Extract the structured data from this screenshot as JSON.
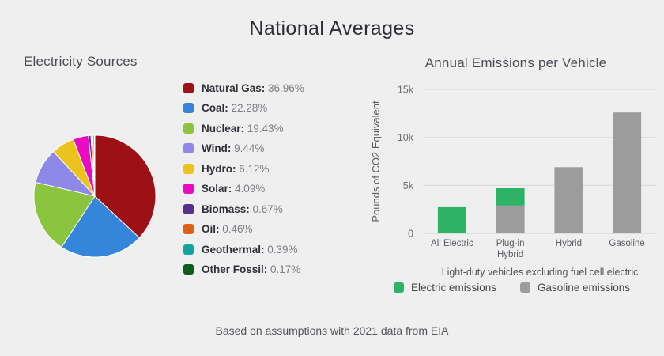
{
  "page": {
    "title": "National Averages",
    "footer": "Based on assumptions with 2021 data from EIA"
  },
  "colors": {
    "background": "#efefef",
    "title_text": "#2f2f38",
    "section_title_text": "#4c4c55",
    "muted_text": "#7d7d85",
    "axis_text": "#6b6b73",
    "gridline": "#d8d8dc",
    "axis_line": "#c8ccd4",
    "electric_green": "#2eb366",
    "gasoline_gray": "#9c9c9c"
  },
  "chart_data": [
    {
      "type": "pie",
      "title": "Electricity Sources",
      "labels": [
        "Natural Gas",
        "Coal",
        "Nuclear",
        "Wind",
        "Hydro",
        "Solar",
        "Biomass",
        "Oil",
        "Geothermal",
        "Other Fossil"
      ],
      "values": [
        36.96,
        22.28,
        19.43,
        9.44,
        6.12,
        4.09,
        0.67,
        0.46,
        0.39,
        0.17
      ],
      "unit": "%",
      "colors": [
        "#9d1116",
        "#3586db",
        "#8bc43e",
        "#8e88e8",
        "#ecc31d",
        "#ea0ac2",
        "#56308a",
        "#de6012",
        "#12a5a0",
        "#0c5c1c"
      ],
      "start_angle_deg": 0,
      "direction": "clockwise",
      "legend_position": "right"
    },
    {
      "type": "bar",
      "stacked": true,
      "title": "Annual Emissions per Vehicle",
      "categories": [
        "All Electric",
        "Plug-in Hybrid",
        "Hybrid",
        "Gasoline"
      ],
      "series": [
        {
          "name": "Electric emissions",
          "color": "#2eb366",
          "values": [
            2727,
            1795,
            0,
            0
          ]
        },
        {
          "name": "Gasoline emissions",
          "color": "#9c9c9c",
          "values": [
            0,
            2906,
            6898,
            12594
          ]
        }
      ],
      "stack_order_bottom_to_top": [
        "Gasoline emissions",
        "Electric emissions"
      ],
      "ylabel": "Pounds of CO2 Equivalent",
      "xlabel": "Light-duty vehicles excluding fuel cell electric",
      "ylim": [
        0,
        15000
      ],
      "yticks": [
        {
          "value": 0,
          "label": "0"
        },
        {
          "value": 5000,
          "label": "5k"
        },
        {
          "value": 10000,
          "label": "10k"
        },
        {
          "value": 15000,
          "label": "15k"
        }
      ],
      "xtick_lines": [
        [
          "All Electric"
        ],
        [
          "Plug-in",
          "Hybrid"
        ],
        [
          "Hybrid"
        ],
        [
          "Gasoline"
        ]
      ],
      "grid": true,
      "legend_position": "bottom"
    }
  ]
}
